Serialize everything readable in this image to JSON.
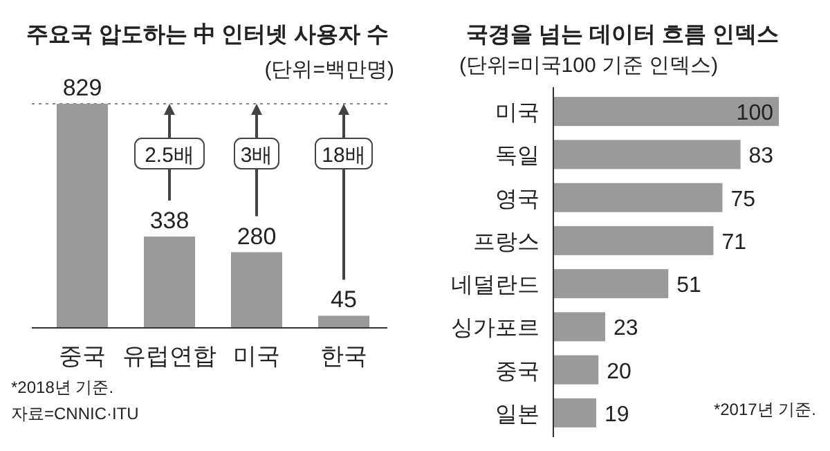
{
  "chart_data": [
    {
      "type": "bar",
      "title": "주요국 압도하는 中 인터넷 사용자 수",
      "subtitle": "(단위=백만명)",
      "categories": [
        "중국",
        "유럽연합",
        "미국",
        "한국"
      ],
      "values": [
        829,
        338,
        280,
        45
      ],
      "color": "#9a9a9a",
      "data_labels": true,
      "ref_lines": [
        {
          "axis": "y",
          "value": 829,
          "color": "#888888",
          "line_style": "dotted"
        }
      ],
      "annotations": [
        "2.5배",
        "3배",
        "18배",
        "*2018년 기준.",
        "자료=CNNIC·ITU"
      ]
    },
    {
      "type": "bar",
      "orientation": "horizontal",
      "title": "국경을 넘는 데이터 흐름 인덱스",
      "subtitle": "(단위=미국100 기준 인덱스)",
      "categories": [
        "미국",
        "독일",
        "영국",
        "프랑스",
        "네덜란드",
        "싱가포르",
        "중국",
        "일본"
      ],
      "values": [
        100,
        83,
        75,
        71,
        51,
        23,
        20,
        19
      ],
      "color": "#9a9a9a",
      "data_labels": true,
      "annotations": [
        "*2017년 기준."
      ]
    }
  ]
}
